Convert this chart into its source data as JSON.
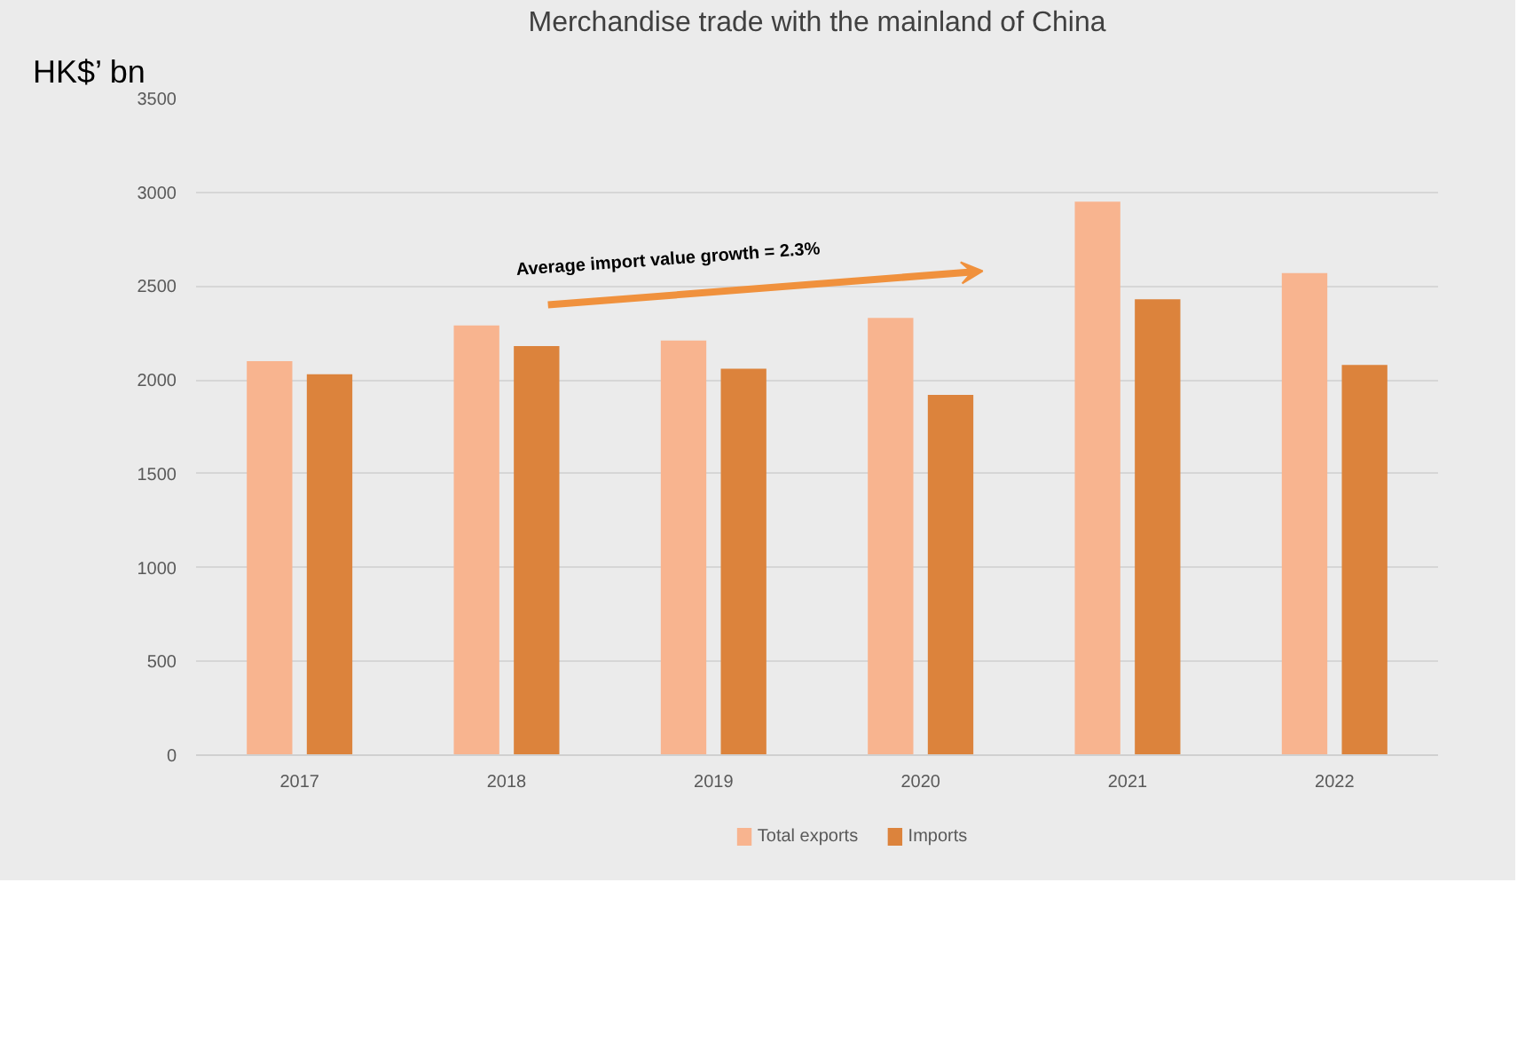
{
  "chart_data": {
    "type": "bar",
    "title": "Merchandise trade with the mainland of China",
    "ylabel": "HK$’ bn",
    "categories": [
      "2017",
      "2018",
      "2019",
      "2020",
      "2021",
      "2022"
    ],
    "series": [
      {
        "name": "Total exports",
        "color": "#f8b48f",
        "values": [
          2100,
          2290,
          2210,
          2330,
          2950,
          2570
        ]
      },
      {
        "name": "Imports",
        "color": "#dc833c",
        "values": [
          2030,
          2180,
          2060,
          1920,
          2430,
          2080
        ]
      }
    ],
    "ylim": [
      0,
      3500
    ],
    "yticks": [
      0,
      500,
      1000,
      1500,
      2000,
      2500,
      3000,
      3500
    ],
    "grid": "y",
    "legend": "bottom",
    "annotations": [
      "Average import value growth = 2.3%"
    ]
  }
}
